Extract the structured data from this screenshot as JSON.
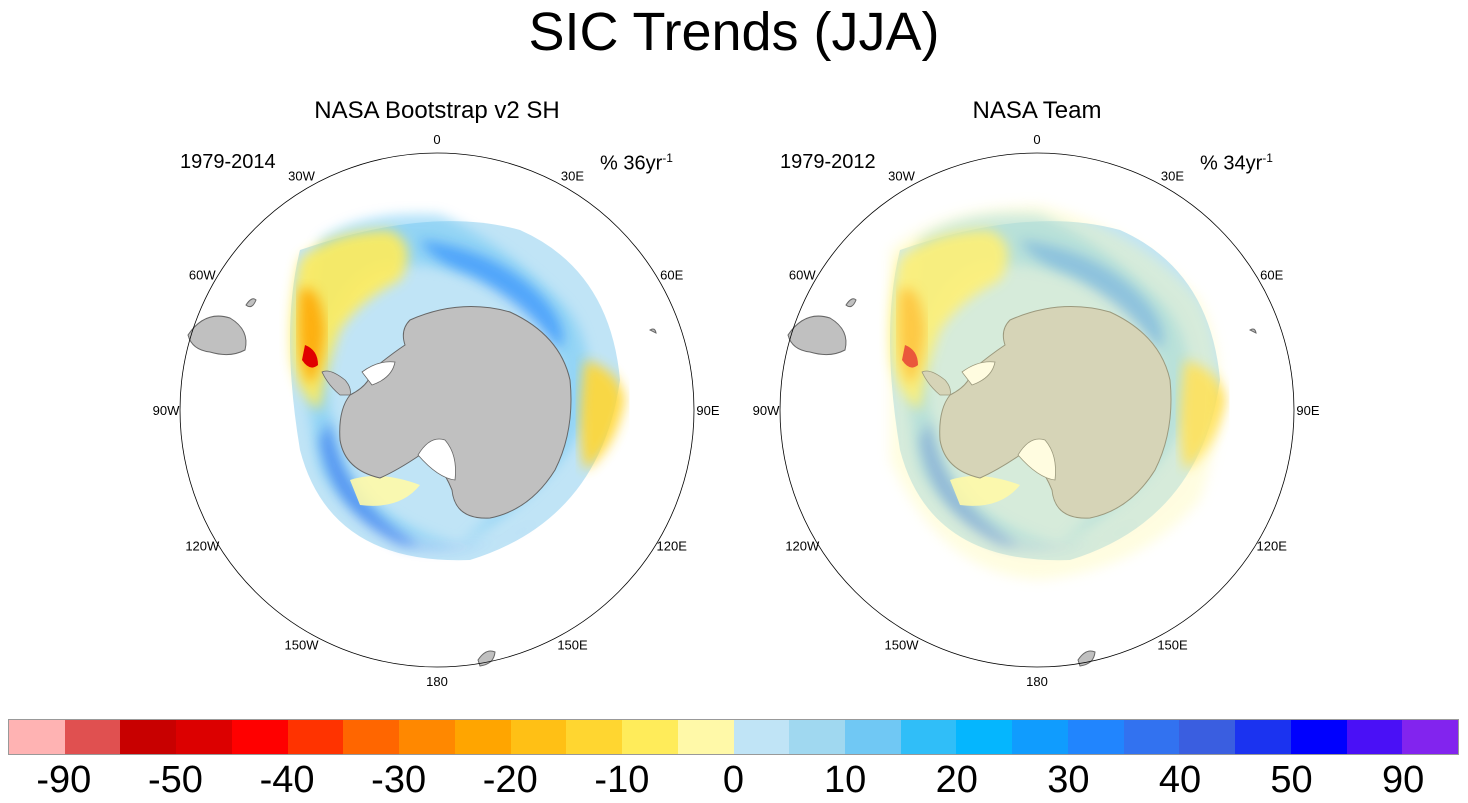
{
  "title": "SIC Trends (JJA)",
  "panels": [
    {
      "name": "bootstrap",
      "title": "NASA Bootstrap v2 SH",
      "period": "1979-2014",
      "units_prefix": "% 36yr",
      "units_exp": "-1"
    },
    {
      "name": "team",
      "title": "NASA Team",
      "period": "1979-2012",
      "units_prefix": "% 34yr",
      "units_exp": "-1"
    }
  ],
  "longitudes": [
    "0",
    "30E",
    "60E",
    "90E",
    "120E",
    "150E",
    "180",
    "150W",
    "120W",
    "90W",
    "60W",
    "30W"
  ],
  "colorbar": {
    "colors": [
      "#ffb3b3",
      "#e05050",
      "#c80000",
      "#dc0000",
      "#ff0000",
      "#ff3300",
      "#ff6600",
      "#ff8800",
      "#ffa500",
      "#ffc015",
      "#ffd630",
      "#ffec5a",
      "#fff9a8",
      "#c0e4f6",
      "#a0d8f0",
      "#70c8f4",
      "#30bef8",
      "#05b6fe",
      "#109cfe",
      "#2185fe",
      "#3272f0",
      "#3a5ee0",
      "#1b33f0",
      "#0000fe",
      "#4a10f6",
      "#8224ee"
    ],
    "labels": [
      "-90",
      "-50",
      "-40",
      "-30",
      "-20",
      "-10",
      "0",
      "10",
      "20",
      "30",
      "40",
      "50",
      "90"
    ]
  }
}
